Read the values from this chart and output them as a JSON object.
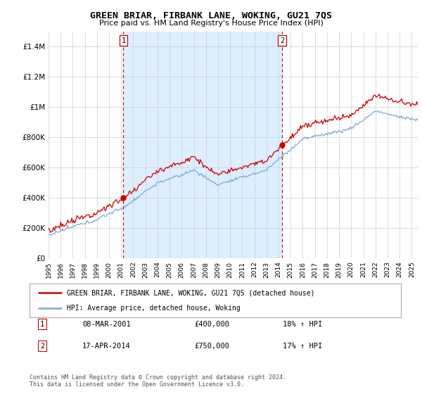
{
  "title": "GREEN BRIAR, FIRBANK LANE, WOKING, GU21 7QS",
  "subtitle": "Price paid vs. HM Land Registry's House Price Index (HPI)",
  "legend_line1": "GREEN BRIAR, FIRBANK LANE, WOKING, GU21 7QS (detached house)",
  "legend_line2": "HPI: Average price, detached house, Woking",
  "footnote1": "Contains HM Land Registry data © Crown copyright and database right 2024.",
  "footnote2": "This data is licensed under the Open Government Licence v3.0.",
  "annotation1_label": "1",
  "annotation1_date": "08-MAR-2001",
  "annotation1_price": "£400,000",
  "annotation1_hpi": "18% ↑ HPI",
  "annotation2_label": "2",
  "annotation2_date": "17-APR-2014",
  "annotation2_price": "£750,000",
  "annotation2_hpi": "17% ↑ HPI",
  "house_color": "#cc0000",
  "hpi_color": "#7aabdc",
  "shade_color": "#ddeeff",
  "ylim": [
    0,
    1500000
  ],
  "yticks": [
    0,
    200000,
    400000,
    600000,
    800000,
    1000000,
    1200000,
    1400000
  ],
  "ytick_labels": [
    "£0",
    "£200K",
    "£400K",
    "£600K",
    "£800K",
    "£1M",
    "£1.2M",
    "£1.4M"
  ],
  "start_year": 1995,
  "end_year": 2025,
  "sale1_year": 2001.18,
  "sale1_price": 400000,
  "sale2_year": 2014.29,
  "sale2_price": 750000,
  "background_color": "#ffffff",
  "grid_color": "#cccccc"
}
